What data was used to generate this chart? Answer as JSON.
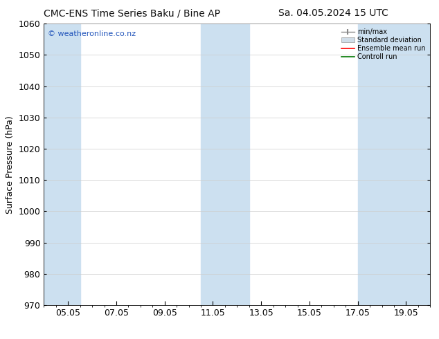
{
  "title_left": "CMC-ENS Time Series Baku / Bine AP",
  "title_right": "Sa. 04.05.2024 15 UTC",
  "ylabel": "Surface Pressure (hPa)",
  "ylim": [
    970,
    1060
  ],
  "yticks": [
    970,
    980,
    990,
    1000,
    1010,
    1020,
    1030,
    1040,
    1050,
    1060
  ],
  "xtick_labels": [
    "05.05",
    "07.05",
    "09.05",
    "11.05",
    "13.05",
    "15.05",
    "17.05",
    "19.05"
  ],
  "xtick_positions": [
    1,
    3,
    5,
    7,
    9,
    11,
    13,
    15
  ],
  "xlim": [
    0,
    16
  ],
  "watermark": "© weatheronline.co.nz",
  "watermark_color": "#2255bb",
  "background_color": "#ffffff",
  "plot_bg_color": "#ffffff",
  "shaded_bands": [
    {
      "x_start": 0.0,
      "x_end": 1.5,
      "color": "#cce0f0"
    },
    {
      "x_start": 6.5,
      "x_end": 8.5,
      "color": "#cce0f0"
    },
    {
      "x_start": 13.0,
      "x_end": 16.0,
      "color": "#cce0f0"
    }
  ],
  "legend_labels": [
    "min/max",
    "Standard deviation",
    "Ensemble mean run",
    "Controll run"
  ],
  "legend_colors": [
    "#888888",
    "#bbbbbb",
    "#ff0000",
    "#007700"
  ],
  "title_fontsize": 10,
  "axis_label_fontsize": 9,
  "tick_fontsize": 9
}
